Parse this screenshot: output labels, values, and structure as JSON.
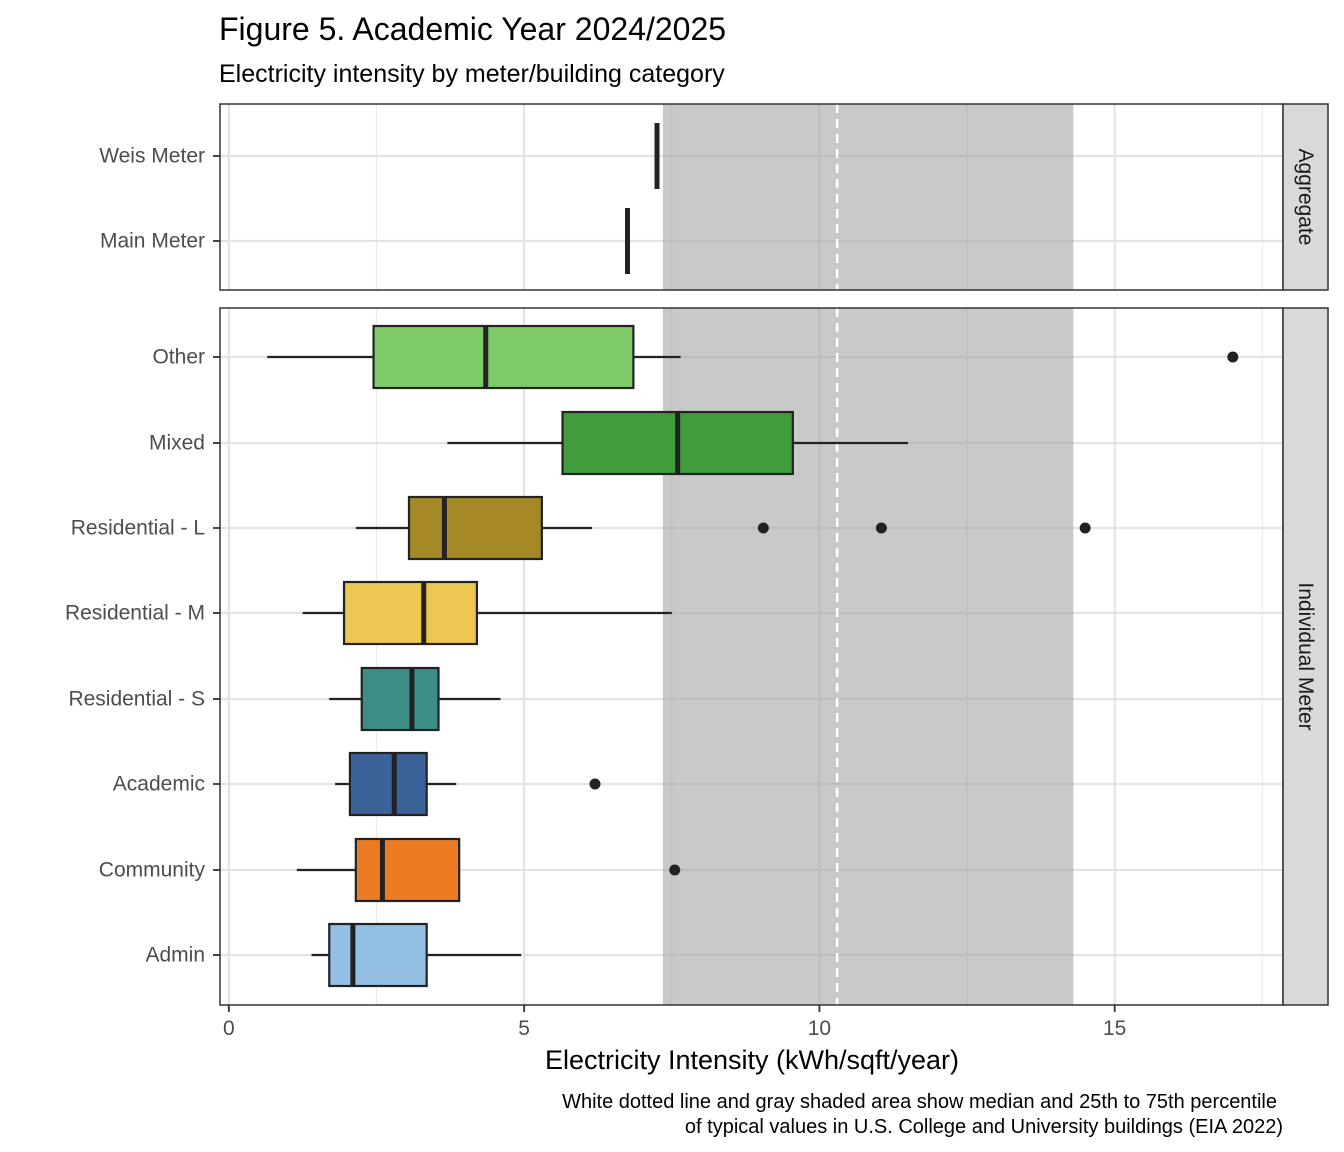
{
  "chart_data": {
    "type": "boxplot",
    "title": "Figure 5. Academic Year 2024/2025",
    "subtitle": "Electricity intensity by meter/building category",
    "xlabel": "Electricity Intensity (kWh/sqft/year)",
    "ylabel": "",
    "xlim": [
      -0.15,
      17.85
    ],
    "xticks": [
      0,
      5,
      10,
      15
    ],
    "xtick_labels": [
      "0",
      "5",
      "10",
      "15"
    ],
    "grid": true,
    "reference": {
      "median": 10.3,
      "p25": 7.35,
      "p75": 14.3,
      "median_line_color": "#ffffff",
      "band_color": "#c9c9c9"
    },
    "caption": [
      "White dotted line and gray shaded area show median and 25th to 75th percentile",
      "of typical values in U.S. College and University buildings (EIA 2022)"
    ],
    "panels": [
      {
        "strip_label": "Aggregate",
        "categories": [
          "Weis Meter",
          "Main Meter"
        ],
        "points": [
          {
            "name": "Weis Meter",
            "value": 7.25
          },
          {
            "name": "Main Meter",
            "value": 6.75
          }
        ]
      },
      {
        "strip_label": "Individual Meter",
        "categories": [
          "Other",
          "Mixed",
          "Residential - L",
          "Residential - M",
          "Residential - S",
          "Academic",
          "Community",
          "Admin"
        ],
        "boxes": [
          {
            "name": "Other",
            "min": 0.65,
            "q1": 2.45,
            "median": 4.35,
            "q3": 6.85,
            "max": 7.65,
            "outliers": [
              17.0
            ],
            "color": "#7fcb6a"
          },
          {
            "name": "Mixed",
            "min": 3.7,
            "q1": 5.65,
            "median": 7.6,
            "q3": 9.55,
            "max": 11.5,
            "outliers": [],
            "color": "#419c3c"
          },
          {
            "name": "Residential - L",
            "min": 2.15,
            "q1": 3.05,
            "median": 3.65,
            "q3": 5.3,
            "max": 6.15,
            "outliers": [
              9.05,
              11.05,
              14.5
            ],
            "color": "#a58926"
          },
          {
            "name": "Residential - M",
            "min": 1.25,
            "q1": 1.95,
            "median": 3.3,
            "q3": 4.2,
            "max": 7.5,
            "outliers": [],
            "color": "#ecc752"
          },
          {
            "name": "Residential - S",
            "min": 1.7,
            "q1": 2.25,
            "median": 3.1,
            "q3": 3.55,
            "max": 4.6,
            "outliers": [],
            "color": "#3b8d85"
          },
          {
            "name": "Academic",
            "min": 1.8,
            "q1": 2.05,
            "median": 2.8,
            "q3": 3.35,
            "max": 3.85,
            "outliers": [
              6.2
            ],
            "color": "#3c6399"
          },
          {
            "name": "Community",
            "min": 1.15,
            "q1": 2.15,
            "median": 2.6,
            "q3": 3.9,
            "max": 3.9,
            "outliers": [
              7.55
            ],
            "color": "#ec7c24"
          },
          {
            "name": "Admin",
            "min": 1.4,
            "q1": 1.7,
            "median": 2.1,
            "q3": 3.35,
            "max": 4.95,
            "outliers": [],
            "color": "#92bfe3"
          }
        ]
      }
    ]
  }
}
